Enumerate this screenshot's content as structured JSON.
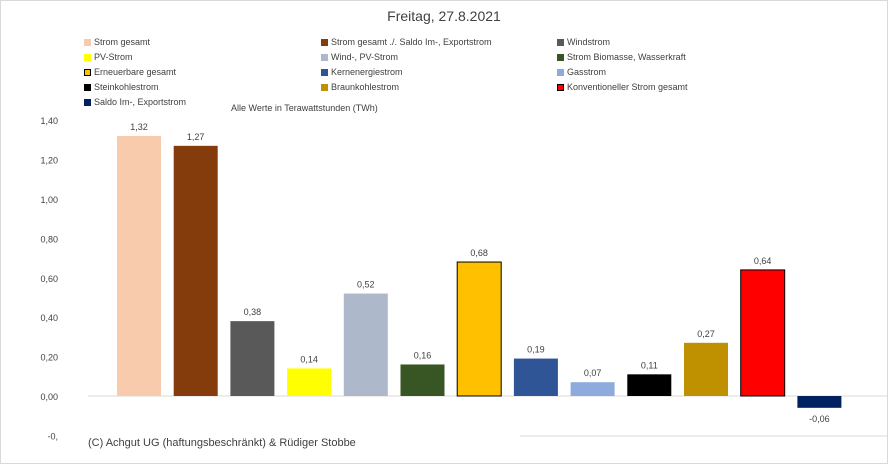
{
  "chart_data": {
    "type": "bar",
    "title": "Freitag, 27.8.2021",
    "subtitle": "Alle Werte in Terawattstunden (TWh)",
    "ylim": [
      -0.2,
      1.4
    ],
    "yticks": [
      "1,40",
      "1,20",
      "1,00",
      "0,80",
      "0,60",
      "0,40",
      "0,20",
      "0,00",
      "-0,"
    ],
    "ytick_values": [
      1.4,
      1.2,
      1.0,
      0.8,
      0.6,
      0.4,
      0.2,
      0.0,
      -0.2
    ],
    "grid": false,
    "legend_position": "top",
    "series": [
      {
        "name": "Strom gesamt",
        "value": 1.32,
        "label": "1,32",
        "color": "#f8cbad"
      },
      {
        "name": "Strom gesamt ./. Saldo Im-, Exportstrom",
        "value": 1.27,
        "label": "1,27",
        "color": "#843c0c"
      },
      {
        "name": "Windstrom",
        "value": 0.38,
        "label": "0,38",
        "color": "#595959"
      },
      {
        "name": "PV-Strom",
        "value": 0.14,
        "label": "0,14",
        "color": "#ffff00"
      },
      {
        "name": "Wind-, PV-Strom",
        "value": 0.52,
        "label": "0,52",
        "color": "#adb9ca"
      },
      {
        "name": "Strom Biomasse, Wasserkraft",
        "value": 0.16,
        "label": "0,16",
        "color": "#375623"
      },
      {
        "name": "Erneuerbare gesamt",
        "value": 0.68,
        "label": "0,68",
        "color": "#ffc000",
        "outlined": true
      },
      {
        "name": "Kernenergiestrom",
        "value": 0.19,
        "label": "0,19",
        "color": "#2f5597"
      },
      {
        "name": "Gasstrom",
        "value": 0.07,
        "label": "0,07",
        "color": "#8faadc"
      },
      {
        "name": "Steinkohlestrom",
        "value": 0.11,
        "label": "0,11",
        "color": "#000000"
      },
      {
        "name": "Braunkohlestrom",
        "value": 0.27,
        "label": "0,27",
        "color": "#bf9000"
      },
      {
        "name": "Konventioneller Strom gesamt",
        "value": 0.64,
        "label": "0,64",
        "color": "#ff0000",
        "outlined": true
      },
      {
        "name": "Saldo Im-, Exportstrom",
        "value": -0.06,
        "label": "-0,06",
        "color": "#002060"
      }
    ]
  },
  "footer": {
    "copyright": "(C) Achgut UG (haftungsbeschränkt) & Rüdiger Stobbe"
  }
}
